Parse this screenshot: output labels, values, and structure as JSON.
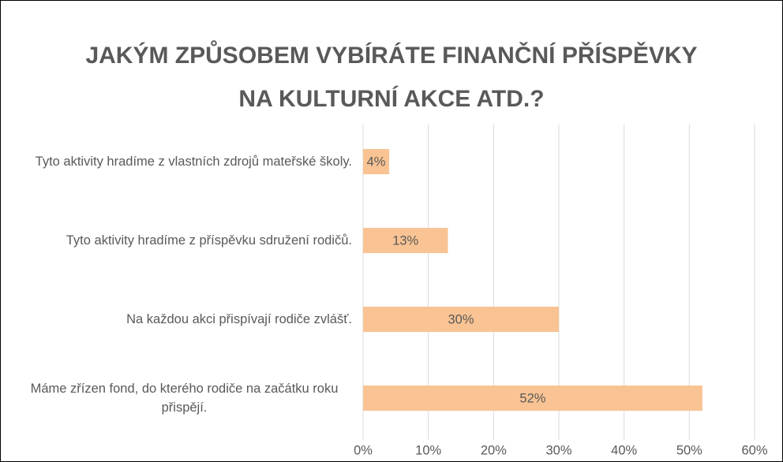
{
  "chart_data": {
    "type": "bar",
    "orientation": "horizontal",
    "title": "JAKÝM ZPŮSOBEM VYBÍRÁTE FINANČNÍ PŘÍSPĚVKY NA KULTURNÍ AKCE ATD.?",
    "categories": [
      "Tyto aktivity hradíme z vlastních zdrojů mateřské školy.",
      "Tyto aktivity hradíme z příspěvku sdružení rodičů.",
      "Na každou akci přispívají rodiče zvlášť.",
      "Máme zřízen fond, do kterého rodiče na začátku roku přispějí."
    ],
    "values": [
      4,
      13,
      30,
      52
    ],
    "value_labels": [
      "4%",
      "13%",
      "30%",
      "52%"
    ],
    "color": "#f9c393",
    "xlim": [
      0,
      60
    ],
    "xticks": [
      {
        "value": 0,
        "label": "0%"
      },
      {
        "value": 10,
        "label": "10%"
      },
      {
        "value": 20,
        "label": "20%"
      },
      {
        "value": 30,
        "label": "30%"
      },
      {
        "value": 40,
        "label": "40%"
      },
      {
        "value": 50,
        "label": "50%"
      },
      {
        "value": 60,
        "label": "60%"
      }
    ],
    "grid": true
  }
}
